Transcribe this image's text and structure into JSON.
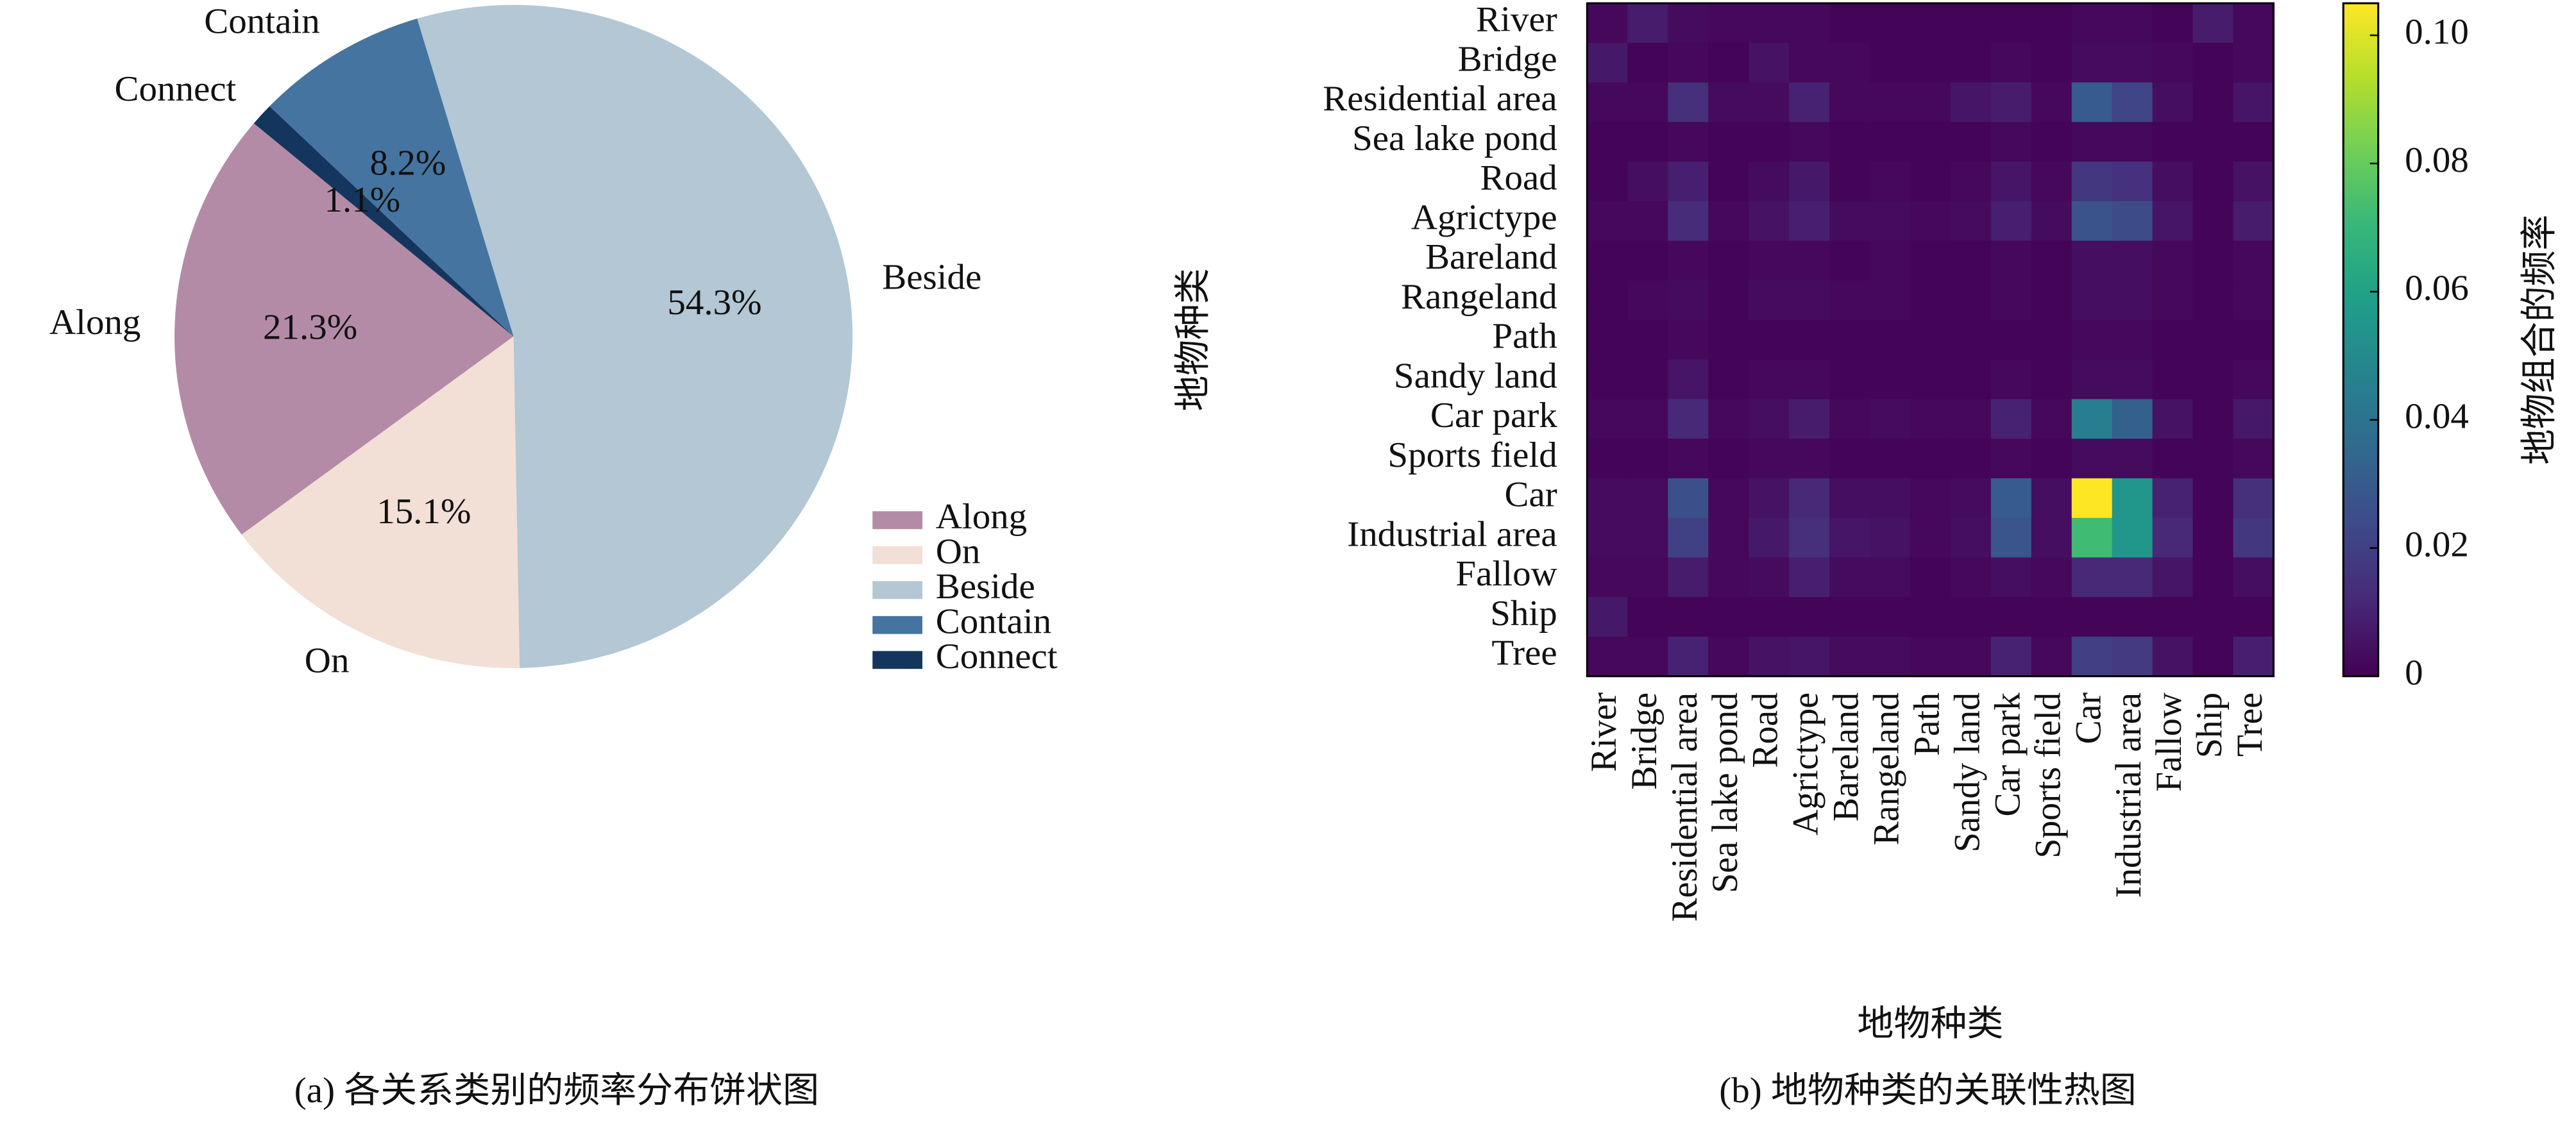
{
  "chart_data": [
    {
      "type": "pie",
      "caption": "(a) 各关系类别的频率分布饼状图",
      "categories": [
        "Along",
        "On",
        "Beside",
        "Contain",
        "Connect"
      ],
      "values": [
        21.3,
        15.1,
        54.3,
        8.2,
        1.1
      ],
      "value_labels": [
        "21.3%",
        "15.1%",
        "54.3%",
        "8.2%",
        "1.1%"
      ],
      "colors": [
        "#b48ba6",
        "#f2dfd5",
        "#b3c7d5",
        "#4574a0",
        "#14365e"
      ],
      "startangle": 140,
      "legend": "lower right"
    },
    {
      "type": "heatmap",
      "caption": "(b) 地物种类的关联性热图",
      "xlabel": "地物种类",
      "ylabel": "地物种类",
      "colorbar_label": "地物组合的频率",
      "x_categories": [
        "River",
        "Bridge",
        "Residential area",
        "Sea lake pond",
        "Road",
        "Agrictype",
        "Bareland",
        "Rangeland",
        "Path",
        "Sandy land",
        "Car park",
        "Sports field",
        "Car",
        "Industrial area",
        "Fallow",
        "Ship",
        "Tree"
      ],
      "y_categories": [
        "River",
        "Bridge",
        "Residential area",
        "Sea lake pond",
        "Road",
        "Agrictype",
        "Bareland",
        "Rangeland",
        "Path",
        "Sandy land",
        "Car park",
        "Sports field",
        "Car",
        "Industrial area",
        "Fallow",
        "Ship",
        "Tree"
      ],
      "values": [
        [
          0.002,
          0.008,
          0.003,
          0.002,
          0.002,
          0.002,
          0.001,
          0.001,
          0.001,
          0.001,
          0.001,
          0.001,
          0.002,
          0.002,
          0.001,
          0.008,
          0.002
        ],
        [
          0.007,
          0.001,
          0.002,
          0.001,
          0.005,
          0.002,
          0.002,
          0.001,
          0.001,
          0.001,
          0.002,
          0.001,
          0.003,
          0.003,
          0.002,
          0.001,
          0.002
        ],
        [
          0.002,
          0.002,
          0.014,
          0.003,
          0.003,
          0.01,
          0.002,
          0.002,
          0.002,
          0.006,
          0.008,
          0.002,
          0.03,
          0.022,
          0.004,
          0.001,
          0.006
        ],
        [
          0.001,
          0.001,
          0.002,
          0.001,
          0.001,
          0.002,
          0.001,
          0.001,
          0.001,
          0.001,
          0.002,
          0.001,
          0.002,
          0.002,
          0.001,
          0.001,
          0.001
        ],
        [
          0.001,
          0.004,
          0.009,
          0.001,
          0.003,
          0.007,
          0.001,
          0.002,
          0.001,
          0.002,
          0.006,
          0.002,
          0.017,
          0.015,
          0.004,
          0.001,
          0.005
        ],
        [
          0.002,
          0.002,
          0.013,
          0.002,
          0.005,
          0.009,
          0.003,
          0.003,
          0.002,
          0.003,
          0.009,
          0.003,
          0.027,
          0.024,
          0.006,
          0.001,
          0.008
        ],
        [
          0.001,
          0.001,
          0.002,
          0.001,
          0.002,
          0.002,
          0.001,
          0.002,
          0.001,
          0.001,
          0.002,
          0.001,
          0.004,
          0.004,
          0.002,
          0.001,
          0.002
        ],
        [
          0.001,
          0.002,
          0.003,
          0.001,
          0.003,
          0.003,
          0.002,
          0.002,
          0.001,
          0.001,
          0.002,
          0.001,
          0.004,
          0.004,
          0.002,
          0.001,
          0.002
        ],
        [
          0.001,
          0.001,
          0.002,
          0.001,
          0.001,
          0.001,
          0.001,
          0.001,
          0.001,
          0.001,
          0.001,
          0.001,
          0.002,
          0.002,
          0.001,
          0.001,
          0.001
        ],
        [
          0.001,
          0.001,
          0.006,
          0.001,
          0.002,
          0.002,
          0.001,
          0.001,
          0.001,
          0.001,
          0.002,
          0.001,
          0.003,
          0.003,
          0.001,
          0.001,
          0.002
        ],
        [
          0.002,
          0.002,
          0.012,
          0.002,
          0.004,
          0.008,
          0.002,
          0.003,
          0.002,
          0.002,
          0.01,
          0.002,
          0.045,
          0.032,
          0.005,
          0.001,
          0.007
        ],
        [
          0.001,
          0.001,
          0.002,
          0.001,
          0.002,
          0.002,
          0.001,
          0.001,
          0.001,
          0.001,
          0.002,
          0.001,
          0.003,
          0.003,
          0.001,
          0.001,
          0.002
        ],
        [
          0.003,
          0.003,
          0.026,
          0.002,
          0.005,
          0.012,
          0.004,
          0.004,
          0.002,
          0.003,
          0.03,
          0.004,
          0.105,
          0.055,
          0.01,
          0.001,
          0.014
        ],
        [
          0.003,
          0.003,
          0.02,
          0.002,
          0.007,
          0.014,
          0.006,
          0.005,
          0.002,
          0.004,
          0.028,
          0.004,
          0.072,
          0.055,
          0.012,
          0.001,
          0.017
        ],
        [
          0.002,
          0.002,
          0.008,
          0.002,
          0.003,
          0.009,
          0.003,
          0.003,
          0.001,
          0.002,
          0.004,
          0.002,
          0.012,
          0.012,
          0.006,
          0.001,
          0.004
        ],
        [
          0.007,
          0.001,
          0.001,
          0.001,
          0.001,
          0.001,
          0.001,
          0.001,
          0.001,
          0.001,
          0.001,
          0.001,
          0.001,
          0.001,
          0.001,
          0.001,
          0.001
        ],
        [
          0.002,
          0.002,
          0.01,
          0.002,
          0.005,
          0.006,
          0.003,
          0.003,
          0.002,
          0.002,
          0.01,
          0.002,
          0.02,
          0.018,
          0.005,
          0.001,
          0.009
        ]
      ],
      "colormap": "viridis",
      "clim": [
        0,
        0.105
      ],
      "cticks": [
        0,
        0.02,
        0.04,
        0.06,
        0.08,
        {
          "value": 0.1,
          "label": "0.10"
        }
      ]
    }
  ]
}
